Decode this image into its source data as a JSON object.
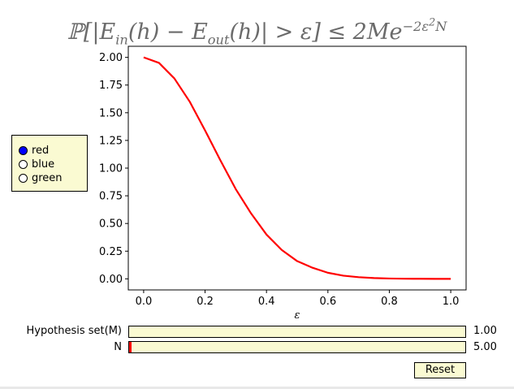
{
  "chart_data": {
    "type": "line",
    "title": "ℙ[|E_in(h) − E_out(h)| > ε] ≤ 2Me^{−2ε²N}",
    "xlabel": "ε",
    "ylabel": "",
    "xlim": [
      -0.05,
      1.05
    ],
    "ylim": [
      -0.1,
      2.1
    ],
    "xticks": [
      0.0,
      0.2,
      0.4,
      0.6,
      0.8,
      1.0
    ],
    "xtick_labels": [
      "0.0",
      "0.2",
      "0.4",
      "0.6",
      "0.8",
      "1.0"
    ],
    "yticks": [
      0.0,
      0.25,
      0.5,
      0.75,
      1.0,
      1.25,
      1.5,
      1.75,
      2.0
    ],
    "ytick_labels": [
      "0.00",
      "0.25",
      "0.50",
      "0.75",
      "1.00",
      "1.25",
      "1.50",
      "1.75",
      "2.00"
    ],
    "grid": false,
    "series": [
      {
        "color": "#ff0000",
        "x": [
          0.0,
          0.05,
          0.1,
          0.15,
          0.2,
          0.25,
          0.3,
          0.35,
          0.4,
          0.45,
          0.5,
          0.55,
          0.6,
          0.65,
          0.7,
          0.75,
          0.8,
          0.85,
          0.9,
          0.95,
          1.0
        ],
        "y": [
          2.0,
          1.95,
          1.81,
          1.6,
          1.34,
          1.07,
          0.81,
          0.59,
          0.4,
          0.26,
          0.16,
          0.1,
          0.055,
          0.029,
          0.015,
          0.007,
          0.003,
          0.0014,
          0.0006,
          0.0002,
          0.0001
        ]
      }
    ]
  },
  "radio": {
    "options": [
      "red",
      "blue",
      "green"
    ],
    "selected": "red",
    "selected_color": "#0000ff"
  },
  "sliders": [
    {
      "label": "Hypothesis set(M)",
      "value_text": "1.00",
      "fill_fraction": 0.0
    },
    {
      "label": "N",
      "value_text": "5.00",
      "fill_fraction": 0.005
    }
  ],
  "reset_label": "Reset"
}
